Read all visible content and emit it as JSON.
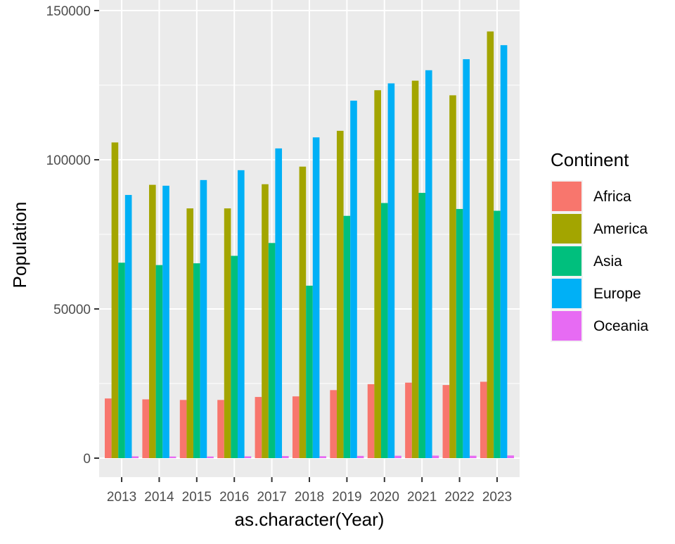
{
  "chart_data": {
    "type": "bar",
    "title": "",
    "xlabel": "as.character(Year)",
    "ylabel": "Population",
    "ylim": [
      -6000,
      150000
    ],
    "y_ticks": [
      0,
      50000,
      100000,
      150000
    ],
    "y_tick_labels": [
      "0",
      "50000",
      "100000",
      "150000"
    ],
    "grid": true,
    "legend_position": "right",
    "legend_title": "Continent",
    "categories": [
      "2013",
      "2014",
      "2015",
      "2016",
      "2017",
      "2018",
      "2019",
      "2020",
      "2021",
      "2022",
      "2023"
    ],
    "series": [
      {
        "name": "Africa",
        "color": "#F8766D",
        "values": [
          20000,
          19700,
          19500,
          19500,
          20500,
          20700,
          22800,
          24800,
          25300,
          24500,
          25600
        ]
      },
      {
        "name": "America",
        "color": "#A3A500",
        "values": [
          105800,
          91600,
          83700,
          83700,
          91800,
          97700,
          109700,
          123300,
          126500,
          121600,
          143000
        ]
      },
      {
        "name": "Asia",
        "color": "#00BF7D",
        "values": [
          65500,
          64700,
          65300,
          67800,
          72100,
          57800,
          81200,
          85500,
          88900,
          83500,
          82900
        ]
      },
      {
        "name": "Europe",
        "color": "#00B0F6",
        "values": [
          88200,
          91300,
          93200,
          96500,
          103800,
          107500,
          119800,
          125600,
          130000,
          133700,
          138400
        ]
      },
      {
        "name": "Oceania",
        "color": "#E76BF3",
        "values": [
          600,
          550,
          550,
          600,
          700,
          650,
          750,
          800,
          850,
          800,
          900
        ]
      }
    ]
  }
}
